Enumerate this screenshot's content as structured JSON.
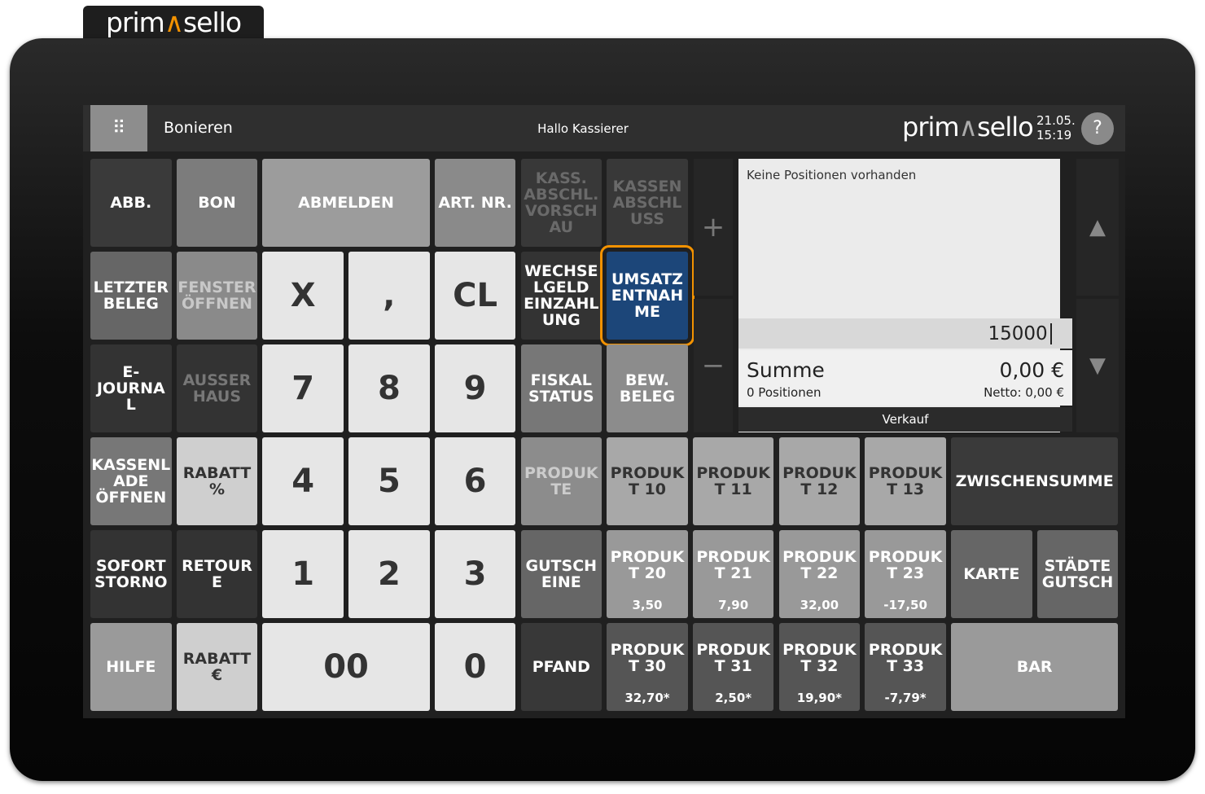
{
  "brand": {
    "part1": "prim",
    "part2": "sello"
  },
  "header": {
    "menu_icon": "grid-icon",
    "title": "Bonieren",
    "greeting": "Hallo Kassierer",
    "date": "21.05.",
    "time": "15:19",
    "help": "?"
  },
  "receipt": {
    "empty_text": "Keine Positionen vorhanden",
    "input_value": "15000",
    "sum_label": "Summe",
    "sum_value": "0,00 €",
    "positions": "0 Positionen",
    "netto": "Netto: 0,00 €",
    "mode": "Verkauf"
  },
  "side": {
    "plus": "+",
    "minus": "−",
    "up": "▲",
    "down": "▼"
  },
  "accent_color": "#f39200",
  "buttons": [
    {
      "label": "ABB."
    },
    {
      "label": "BON"
    },
    {
      "label": "ABMELDEN"
    },
    {
      "label": "ART. NR."
    },
    {
      "label": "KASS.\nABSCHL.\nVORSCH\nAU"
    },
    {
      "label": "KASSEN\nABSCHL\nUSS"
    },
    {
      "label": "LETZTER\nBELEG"
    },
    {
      "label": "FENSTER\nÖFFNEN"
    },
    {
      "label": "X"
    },
    {
      "label": ","
    },
    {
      "label": "CL"
    },
    {
      "label": "WECHSE\nLGELD\nEINZAHL\nUNG"
    },
    {
      "label": "UMSATZ\nENTNAH\nME"
    },
    {
      "label": "E-\nJOURNA\nL"
    },
    {
      "label": "AUSSER\nHAUS"
    },
    {
      "label": "7"
    },
    {
      "label": "8"
    },
    {
      "label": "9"
    },
    {
      "label": "FISKAL\nSTATUS"
    },
    {
      "label": "BEW.\nBELEG"
    },
    {
      "label": "KASSENL\nADE\nÖFFNEN"
    },
    {
      "label": "RABATT\n%"
    },
    {
      "label": "4"
    },
    {
      "label": "5"
    },
    {
      "label": "6"
    },
    {
      "label": "PRODUK\nTE"
    },
    {
      "label": "PRODUK\nT 10"
    },
    {
      "label": "PRODUK\nT 11"
    },
    {
      "label": "PRODUK\nT 12"
    },
    {
      "label": "PRODUK\nT 13"
    },
    {
      "label": "ZWISCHENSUMME"
    },
    {
      "label": "SOFORT\nSTORNO"
    },
    {
      "label": "RETOUR\nE"
    },
    {
      "label": "1"
    },
    {
      "label": "2"
    },
    {
      "label": "3"
    },
    {
      "label": "GUTSCH\nEINE"
    },
    {
      "label": "PRODUK\nT 20",
      "price": "3,50"
    },
    {
      "label": "PRODUK\nT 21",
      "price": "7,90"
    },
    {
      "label": "PRODUK\nT 22",
      "price": "32,00"
    },
    {
      "label": "PRODUK\nT 23",
      "price": "-17,50"
    },
    {
      "label": "KARTE"
    },
    {
      "label": "STÄDTE\nGUTSCH"
    },
    {
      "label": "HILFE"
    },
    {
      "label": "RABATT\n€"
    },
    {
      "label": "00"
    },
    {
      "label": "0"
    },
    {
      "label": "PFAND"
    },
    {
      "label": "PRODUK\nT 30",
      "price": "32,70*"
    },
    {
      "label": "PRODUK\nT 31",
      "price": "2,50*"
    },
    {
      "label": "PRODUK\nT 32",
      "price": "19,90*"
    },
    {
      "label": "PRODUK\nT 33",
      "price": "-7,79*"
    },
    {
      "label": "BAR"
    }
  ]
}
